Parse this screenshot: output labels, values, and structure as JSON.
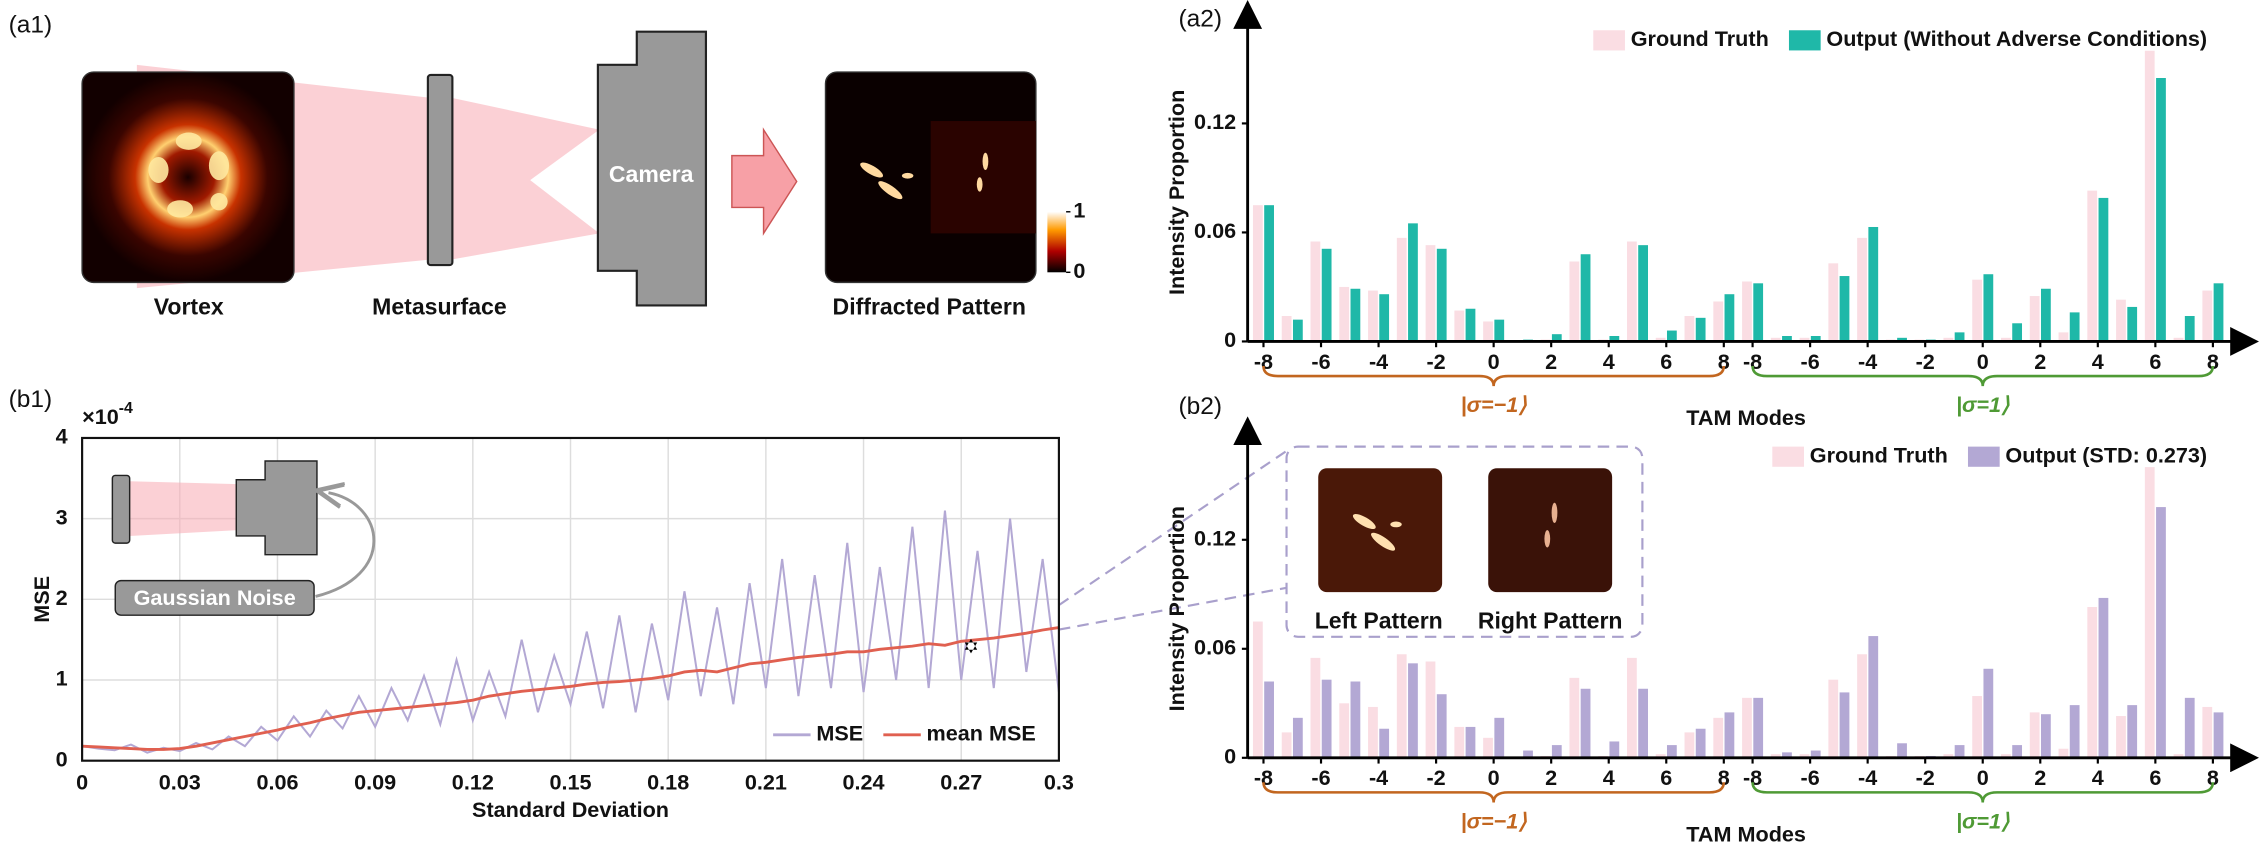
{
  "diagram": {
    "panel_label": "(a1)",
    "labels": {
      "source": "Vortex",
      "metasurface": "Metasurface",
      "camera": "Camera",
      "pattern": "Diffracted Pattern"
    },
    "colorbar": {
      "max": 1,
      "min": 0
    }
  },
  "insets": {
    "noise": "Gaussian Noise",
    "left": "Left Pattern",
    "right": "Right Pattern"
  },
  "chart_data": [
    {
      "type": "bar",
      "panel_label": "(a2)",
      "ylabel": "Intensity Proportion",
      "xlabel": "TAM Modes",
      "categories": [
        "-8",
        null,
        "-6",
        null,
        "-4",
        null,
        "-2",
        null,
        "0",
        null,
        "2",
        null,
        "4",
        null,
        "6",
        null,
        "8",
        "-8",
        null,
        "-6",
        null,
        "-4",
        null,
        "-2",
        null,
        "0",
        null,
        "2",
        null,
        "4",
        null,
        "6",
        null,
        "8"
      ],
      "groups": [
        {
          "label": "|σ=−1⟩",
          "color": "#c2661f"
        },
        {
          "label": "|σ=1⟩",
          "color": "#4f9a35"
        }
      ],
      "series": [
        {
          "name": "Ground Truth",
          "color": "#fadde3",
          "values": [
            0.075,
            0.014,
            0.055,
            0.03,
            0.028,
            0.057,
            0.053,
            0.017,
            0.011,
            0,
            0.001,
            0.044,
            0.001,
            0.055,
            0.002,
            0.014,
            0.022,
            0.033,
            0.002,
            0.002,
            0.043,
            0.057,
            0.001,
            0.001,
            0.002,
            0.034,
            0.002,
            0.025,
            0.005,
            0.083,
            0.023,
            0.16,
            0.002,
            0.028
          ]
        },
        {
          "name": "Output (Without Adverse Conditions)",
          "color": "#1fb8a8",
          "values": [
            0.075,
            0.012,
            0.051,
            0.029,
            0.026,
            0.065,
            0.051,
            0.018,
            0.012,
            0.001,
            0.004,
            0.048,
            0.003,
            0.053,
            0.006,
            0.013,
            0.026,
            0.032,
            0.003,
            0.003,
            0.036,
            0.063,
            0.002,
            0.001,
            0.005,
            0.037,
            0.01,
            0.029,
            0.016,
            0.079,
            0.019,
            0.145,
            0.014,
            0.032
          ]
        }
      ],
      "ylim": [
        0,
        0.18
      ],
      "yticks": [
        0,
        0.06,
        0.12
      ],
      "legend": "upper right"
    },
    {
      "type": "bar",
      "panel_label": "(b2)",
      "ylabel": "Intensity Proportion",
      "xlabel": "TAM Modes",
      "categories": [
        "-8",
        null,
        "-6",
        null,
        "-4",
        null,
        "-2",
        null,
        "0",
        null,
        "2",
        null,
        "4",
        null,
        "6",
        null,
        "8",
        "-8",
        null,
        "-6",
        null,
        "-4",
        null,
        "-2",
        null,
        "0",
        null,
        "2",
        null,
        "4",
        null,
        "6",
        null,
        "8"
      ],
      "groups": [
        {
          "label": "|σ=−1⟩",
          "color": "#c2661f"
        },
        {
          "label": "|σ=1⟩",
          "color": "#4f9a35"
        }
      ],
      "series": [
        {
          "name": "Ground Truth",
          "color": "#fadde3",
          "values": [
            0.075,
            0.014,
            0.055,
            0.03,
            0.028,
            0.057,
            0.053,
            0.017,
            0.011,
            0,
            0.001,
            0.044,
            0.001,
            0.055,
            0.002,
            0.014,
            0.022,
            0.033,
            0.002,
            0.002,
            0.043,
            0.057,
            0.001,
            0.001,
            0.002,
            0.034,
            0.002,
            0.025,
            0.005,
            0.083,
            0.023,
            0.16,
            0.002,
            0.028
          ]
        },
        {
          "name": "Output (STD: 0.273)",
          "color": "#b3a8d4",
          "values": [
            0.042,
            0.022,
            0.043,
            0.042,
            0.016,
            0.052,
            0.035,
            0.017,
            0.022,
            0.004,
            0.007,
            0.038,
            0.009,
            0.038,
            0.007,
            0.016,
            0.025,
            0.033,
            0.003,
            0.004,
            0.036,
            0.067,
            0.008,
            0.001,
            0.007,
            0.049,
            0.007,
            0.024,
            0.029,
            0.088,
            0.029,
            0.138,
            0.033,
            0.025
          ]
        }
      ],
      "ylim": [
        0,
        0.18
      ],
      "yticks": [
        0,
        0.06,
        0.12
      ],
      "legend": "upper right"
    },
    {
      "type": "line",
      "panel_label": "(b1)",
      "ylabel": "MSE",
      "xlabel": "Standard Deviation",
      "y_scale": "×10",
      "y_scale_exponent": "-4",
      "x": [
        0,
        0.005,
        0.01,
        0.015,
        0.02,
        0.025,
        0.03,
        0.035,
        0.04,
        0.045,
        0.05,
        0.055,
        0.06,
        0.065,
        0.07,
        0.075,
        0.08,
        0.085,
        0.09,
        0.095,
        0.1,
        0.105,
        0.11,
        0.115,
        0.12,
        0.125,
        0.13,
        0.135,
        0.14,
        0.145,
        0.15,
        0.155,
        0.16,
        0.165,
        0.17,
        0.175,
        0.18,
        0.185,
        0.19,
        0.195,
        0.2,
        0.205,
        0.21,
        0.215,
        0.22,
        0.225,
        0.23,
        0.235,
        0.24,
        0.245,
        0.25,
        0.255,
        0.26,
        0.265,
        0.27,
        0.275,
        0.28,
        0.285,
        0.29,
        0.295,
        0.3
      ],
      "series": [
        {
          "name": "MSE",
          "color": "#b3a8d4",
          "values": [
            0.18,
            0.15,
            0.13,
            0.2,
            0.1,
            0.16,
            0.12,
            0.22,
            0.14,
            0.3,
            0.18,
            0.42,
            0.25,
            0.55,
            0.3,
            0.62,
            0.4,
            0.8,
            0.42,
            0.9,
            0.5,
            1.05,
            0.45,
            1.25,
            0.5,
            1.1,
            0.55,
            1.5,
            0.6,
            1.3,
            0.7,
            1.6,
            0.65,
            1.8,
            0.6,
            1.7,
            0.75,
            2.1,
            0.8,
            1.9,
            0.7,
            2.2,
            0.9,
            2.5,
            0.8,
            2.3,
            0.9,
            2.7,
            0.85,
            2.4,
            1.0,
            2.9,
            0.9,
            3.1,
            1.0,
            2.6,
            0.9,
            3.0,
            1.1,
            2.5,
            0.85
          ]
        },
        {
          "name": "mean MSE",
          "color": "#e06050",
          "values": [
            0.18,
            0.17,
            0.16,
            0.15,
            0.14,
            0.14,
            0.15,
            0.18,
            0.22,
            0.26,
            0.3,
            0.34,
            0.38,
            0.43,
            0.47,
            0.52,
            0.56,
            0.6,
            0.62,
            0.64,
            0.66,
            0.68,
            0.7,
            0.72,
            0.75,
            0.8,
            0.83,
            0.86,
            0.88,
            0.9,
            0.92,
            0.95,
            0.97,
            0.98,
            1.0,
            1.02,
            1.05,
            1.1,
            1.12,
            1.1,
            1.15,
            1.2,
            1.22,
            1.25,
            1.28,
            1.3,
            1.32,
            1.35,
            1.35,
            1.38,
            1.4,
            1.42,
            1.45,
            1.43,
            1.48,
            1.5,
            1.52,
            1.55,
            1.58,
            1.62,
            1.65
          ]
        }
      ],
      "highlight": {
        "x": 0.273,
        "y": 1.42
      },
      "xlim": [
        0,
        0.3
      ],
      "xticks": [
        0,
        0.03,
        0.06,
        0.09,
        0.12,
        0.15,
        0.18,
        0.21,
        0.24,
        0.27,
        0.3
      ],
      "ylim": [
        0,
        4
      ],
      "yticks": [
        0,
        1,
        2,
        3,
        4
      ],
      "grid": true,
      "legend": "lower right"
    }
  ]
}
